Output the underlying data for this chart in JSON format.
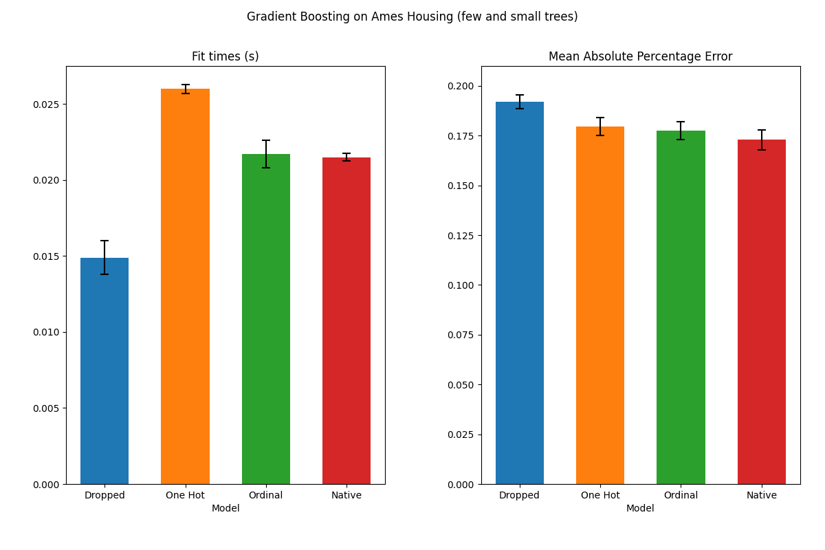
{
  "title": "Gradient Boosting on Ames Housing (few and small trees)",
  "categories": [
    "Dropped",
    "One Hot",
    "Ordinal",
    "Native"
  ],
  "colors": [
    "#1f77b4",
    "#ff7f0e",
    "#2ca02c",
    "#d62728"
  ],
  "fit_times": {
    "title": "Fit times (s)",
    "xlabel": "Model",
    "values": [
      0.0149,
      0.026,
      0.0217,
      0.0215
    ],
    "errors": [
      0.0011,
      0.0003,
      0.0009,
      0.00025
    ],
    "ylim": [
      0.0,
      0.0275
    ]
  },
  "mape": {
    "title": "Mean Absolute Percentage Error",
    "xlabel": "Model",
    "values": [
      0.192,
      0.1795,
      0.1775,
      0.173
    ],
    "errors": [
      0.0035,
      0.0045,
      0.0045,
      0.005
    ],
    "ylim": [
      0.0,
      0.21
    ]
  },
  "fig_title_fontsize": 12,
  "subplot_title_fontsize": 12,
  "axis_label_fontsize": 10,
  "tick_fontsize": 10
}
